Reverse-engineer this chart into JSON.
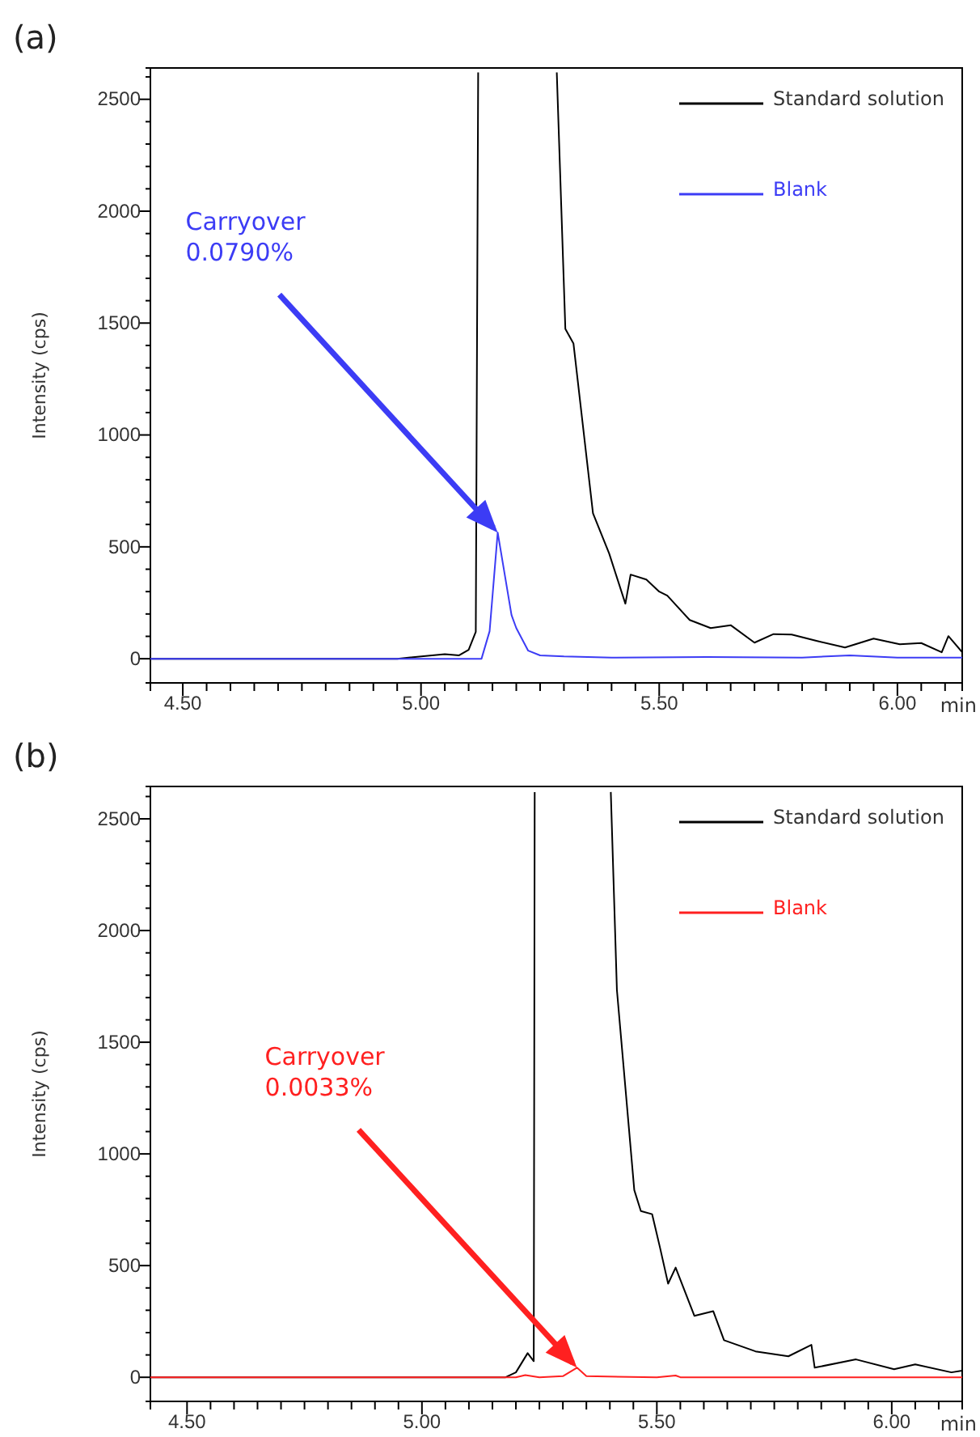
{
  "chart_data": [
    {
      "type": "line",
      "title": "(a)",
      "xlabel": "min",
      "ylabel": "Intensity (cps)",
      "legend": "top right",
      "grid": false,
      "xlim": [
        4.432,
        6.136
      ],
      "ylim": [
        -108,
        2640
      ],
      "xticks": [
        {
          "value": 4.5,
          "label": "4.50"
        },
        {
          "value": 4.55,
          "label": null
        },
        {
          "value": 4.6,
          "label": null
        },
        {
          "value": 4.65,
          "label": null
        },
        {
          "value": 4.7,
          "label": null
        },
        {
          "value": 4.75,
          "label": null
        },
        {
          "value": 4.8,
          "label": null
        },
        {
          "value": 4.85,
          "label": null
        },
        {
          "value": 4.9,
          "label": null
        },
        {
          "value": 4.95,
          "label": null
        },
        {
          "value": 5.0,
          "label": "5.00"
        },
        {
          "value": 5.05,
          "label": null
        },
        {
          "value": 5.1,
          "label": null
        },
        {
          "value": 5.15,
          "label": null
        },
        {
          "value": 5.2,
          "label": null
        },
        {
          "value": 5.25,
          "label": null
        },
        {
          "value": 5.3,
          "label": null
        },
        {
          "value": 5.35,
          "label": null
        },
        {
          "value": 5.4,
          "label": null
        },
        {
          "value": 5.45,
          "label": null
        },
        {
          "value": 5.5,
          "label": "5.50"
        },
        {
          "value": 5.55,
          "label": null
        },
        {
          "value": 5.6,
          "label": null
        },
        {
          "value": 5.65,
          "label": null
        },
        {
          "value": 5.7,
          "label": null
        },
        {
          "value": 5.75,
          "label": null
        },
        {
          "value": 5.8,
          "label": null
        },
        {
          "value": 5.85,
          "label": null
        },
        {
          "value": 5.9,
          "label": null
        },
        {
          "value": 5.95,
          "label": null
        },
        {
          "value": 6.0,
          "label": "6.00"
        },
        {
          "value": 6.05,
          "label": null
        },
        {
          "value": 6.1,
          "label": null
        }
      ],
      "yticks": [
        0,
        {
          "value": 100,
          "label": null
        },
        {
          "value": 200,
          "label": null
        },
        {
          "value": 300,
          "label": null
        },
        {
          "value": 400,
          "label": null
        },
        500,
        {
          "value": 600,
          "label": null
        },
        {
          "value": 700,
          "label": null
        },
        {
          "value": 800,
          "label": null
        },
        {
          "value": 900,
          "label": null
        },
        1000,
        {
          "value": 1100,
          "label": null
        },
        {
          "value": 1200,
          "label": null
        },
        {
          "value": 1300,
          "label": null
        },
        {
          "value": 1400,
          "label": null
        },
        1500,
        {
          "value": 1600,
          "label": null
        },
        {
          "value": 1700,
          "label": null
        },
        {
          "value": 1800,
          "label": null
        },
        {
          "value": 1900,
          "label": null
        },
        2000,
        {
          "value": 2100,
          "label": null
        },
        {
          "value": 2200,
          "label": null
        },
        {
          "value": 2300,
          "label": null
        },
        {
          "value": 2400,
          "label": null
        },
        2500,
        {
          "value": 2600,
          "label": null
        }
      ],
      "annotations": [
        {
          "text": "Carryover\n0.0790%",
          "x": 5.161,
          "y": 564
        }
      ],
      "series": [
        {
          "name": "Standard solution",
          "color": "#000000",
          "x": [
            4.432,
            4.6,
            4.8,
            4.95,
            5.05,
            5.08,
            5.1,
            5.115,
            5.12,
            5.2,
            5.285,
            5.303,
            5.32,
            5.361,
            5.395,
            5.429,
            5.44,
            5.473,
            5.5,
            5.517,
            5.564,
            5.608,
            5.65,
            5.7,
            5.74,
            5.778,
            5.83,
            5.89,
            5.95,
            6.005,
            6.05,
            6.093,
            6.107,
            6.136
          ],
          "values": [
            0,
            0,
            0,
            0,
            20,
            15,
            40,
            120,
            2620,
            null,
            2620,
            1474,
            1409,
            650,
            470,
            246,
            376,
            354,
            300,
            282,
            173,
            137,
            150,
            72,
            110,
            108,
            80,
            50,
            90,
            65,
            70,
            29,
            101,
            29
          ]
        },
        {
          "name": "Blank",
          "color": "#3c3cf5",
          "x": [
            4.432,
            4.8,
            5.0,
            5.127,
            5.144,
            5.161,
            5.19,
            5.2,
            5.225,
            5.25,
            5.3,
            5.4,
            5.6,
            5.8,
            5.9,
            6.0,
            6.136
          ],
          "values": [
            0,
            0,
            0,
            0,
            123,
            564,
            195,
            137,
            36,
            15,
            10,
            5,
            8,
            5,
            15,
            5,
            5
          ]
        }
      ]
    },
    {
      "type": "line",
      "title": "(b)",
      "xlabel": "min",
      "ylabel": "Intensity (cps)",
      "legend": "top right",
      "grid": false,
      "xlim": [
        4.422,
        6.15
      ],
      "ylim": [
        -108,
        2645
      ],
      "xticks": [
        {
          "value": 4.5,
          "label": "4.50"
        },
        {
          "value": 4.55,
          "label": null
        },
        {
          "value": 4.6,
          "label": null
        },
        {
          "value": 4.65,
          "label": null
        },
        {
          "value": 4.7,
          "label": null
        },
        {
          "value": 4.75,
          "label": null
        },
        {
          "value": 4.8,
          "label": null
        },
        {
          "value": 4.85,
          "label": null
        },
        {
          "value": 4.9,
          "label": null
        },
        {
          "value": 4.95,
          "label": null
        },
        {
          "value": 5.0,
          "label": "5.00"
        },
        {
          "value": 5.05,
          "label": null
        },
        {
          "value": 5.1,
          "label": null
        },
        {
          "value": 5.15,
          "label": null
        },
        {
          "value": 5.2,
          "label": null
        },
        {
          "value": 5.25,
          "label": null
        },
        {
          "value": 5.3,
          "label": null
        },
        {
          "value": 5.35,
          "label": null
        },
        {
          "value": 5.4,
          "label": null
        },
        {
          "value": 5.45,
          "label": null
        },
        {
          "value": 5.5,
          "label": "5.50"
        },
        {
          "value": 5.55,
          "label": null
        },
        {
          "value": 5.6,
          "label": null
        },
        {
          "value": 5.65,
          "label": null
        },
        {
          "value": 5.7,
          "label": null
        },
        {
          "value": 5.75,
          "label": null
        },
        {
          "value": 5.8,
          "label": null
        },
        {
          "value": 5.85,
          "label": null
        },
        {
          "value": 5.9,
          "label": null
        },
        {
          "value": 5.95,
          "label": null
        },
        {
          "value": 6.0,
          "label": "6.00"
        },
        {
          "value": 6.05,
          "label": null
        },
        {
          "value": 6.1,
          "label": null
        }
      ],
      "yticks": [
        0,
        {
          "value": 100,
          "label": null
        },
        {
          "value": 200,
          "label": null
        },
        {
          "value": 300,
          "label": null
        },
        {
          "value": 400,
          "label": null
        },
        500,
        {
          "value": 600,
          "label": null
        },
        {
          "value": 700,
          "label": null
        },
        {
          "value": 800,
          "label": null
        },
        {
          "value": 900,
          "label": null
        },
        1000,
        {
          "value": 1100,
          "label": null
        },
        {
          "value": 1200,
          "label": null
        },
        {
          "value": 1300,
          "label": null
        },
        {
          "value": 1400,
          "label": null
        },
        1500,
        {
          "value": 1600,
          "label": null
        },
        {
          "value": 1700,
          "label": null
        },
        {
          "value": 1800,
          "label": null
        },
        {
          "value": 1900,
          "label": null
        },
        2000,
        {
          "value": 2100,
          "label": null
        },
        {
          "value": 2200,
          "label": null
        },
        {
          "value": 2300,
          "label": null
        },
        {
          "value": 2400,
          "label": null
        },
        2500,
        {
          "value": 2600,
          "label": null
        }
      ],
      "annotations": [
        {
          "text": "Carryover\n0.0033%",
          "x": 5.33,
          "y": 43
        }
      ],
      "series": [
        {
          "name": "Standard solution",
          "color": "#000000",
          "x": [
            4.422,
            4.8,
            5.0,
            5.178,
            5.2,
            5.225,
            5.238,
            5.24,
            5.32,
            5.402,
            5.415,
            5.452,
            5.466,
            5.49,
            5.507,
            5.524,
            5.54,
            5.58,
            5.62,
            5.643,
            5.71,
            5.78,
            5.829,
            5.836,
            5.924,
            6.005,
            6.05,
            6.127,
            6.15
          ],
          "values": [
            0,
            0,
            0,
            0,
            22,
            108,
            72,
            2620,
            null,
            2620,
            1734,
            838,
            744,
            730,
            578,
            419,
            491,
            275,
            296,
            166,
            116,
            94,
            145,
            43,
            80,
            36,
            58,
            22,
            30
          ]
        },
        {
          "name": "Blank",
          "color": "#ff2020",
          "x": [
            4.422,
            4.9,
            5.0,
            5.2,
            5.22,
            5.25,
            5.3,
            5.33,
            5.35,
            5.5,
            5.54,
            5.55,
            5.8,
            6.15
          ],
          "values": [
            0,
            0,
            0,
            0,
            10,
            0,
            5,
            43,
            5,
            0,
            8,
            0,
            0,
            0
          ]
        }
      ]
    }
  ]
}
